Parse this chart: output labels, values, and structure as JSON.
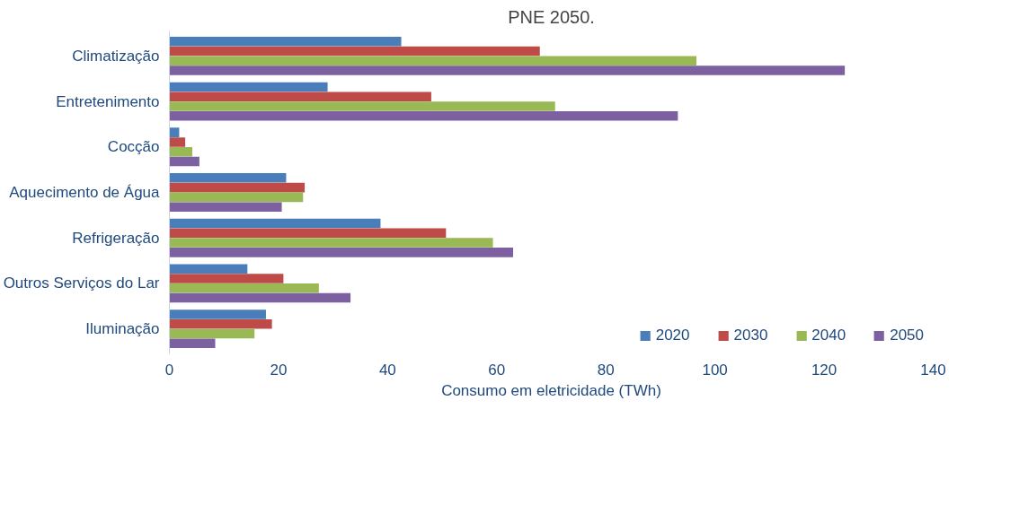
{
  "chart_data": {
    "type": "bar",
    "orientation": "horizontal",
    "title": "PNE 2050.",
    "xlabel": "Consumo em eletricidade (TWh)",
    "categories": [
      "Climatização",
      "Entretenimento",
      "Cocção",
      "Aquecimento de Água",
      "Refrigeração",
      "Outros Serviços do Lar",
      "Iluminação"
    ],
    "series": [
      {
        "name": "2020",
        "color": "#4a7ebb",
        "values": [
          42.5,
          29,
          1.8,
          21.4,
          38.7,
          14.3,
          17.7
        ]
      },
      {
        "name": "2030",
        "color": "#be4b48",
        "values": [
          67.9,
          48,
          2.9,
          24.8,
          50.7,
          20.9,
          18.8
        ]
      },
      {
        "name": "2040",
        "color": "#98b954",
        "values": [
          96.6,
          70.7,
          4.2,
          24.5,
          59.3,
          27.4,
          15.6
        ]
      },
      {
        "name": "2050",
        "color": "#7d60a0",
        "values": [
          123.8,
          93.2,
          5.5,
          20.6,
          63,
          33.2,
          8.4
        ]
      }
    ],
    "xlim": [
      0,
      140
    ],
    "xticks": [
      0,
      20,
      40,
      60,
      80,
      100,
      120,
      140
    ],
    "grid": false,
    "legend": "bottom"
  }
}
